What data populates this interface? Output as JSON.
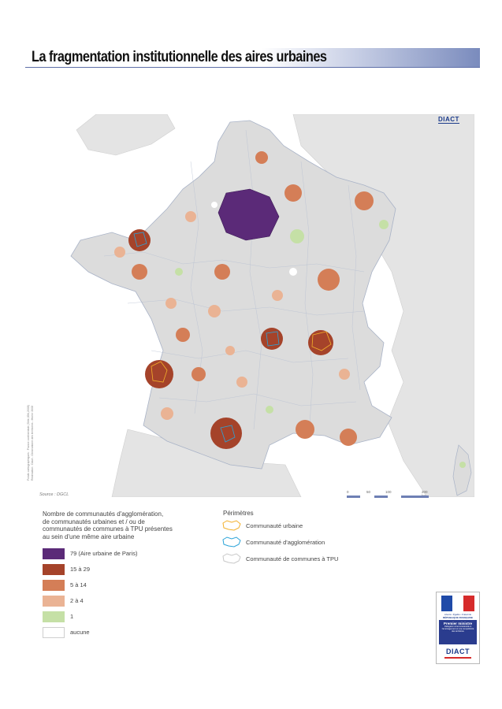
{
  "title": "La fragmentation institutionnelle des aires urbaines",
  "logo_top": "DIACT",
  "side_credit_line1": "Fonds cartographiques : France continentale (Sète,IGN,2008)",
  "side_credit_line2": "Réalisation : Diact - Observatoire des territoires - février 2008",
  "source": "Source : DGCL",
  "scale": {
    "labels": [
      "0",
      "50",
      "100",
      "200 km"
    ]
  },
  "legend": {
    "title_lines": [
      "Nombre de communautés d'agglomération,",
      "de communautés urbaines et / ou de",
      "communautés de communes à TPU présentes",
      "au sein d'une même aire urbaine"
    ],
    "items": [
      {
        "label": "79 (Aire urbaine de Paris)",
        "color": "#5b2a78"
      },
      {
        "label": "15 à 29",
        "color": "#a5432a"
      },
      {
        "label": "5 à 14",
        "color": "#d47e57"
      },
      {
        "label": "2 à 4",
        "color": "#eab394"
      },
      {
        "label": "1",
        "color": "#c5e0a6"
      },
      {
        "label": "aucune",
        "color": "#ffffff"
      }
    ]
  },
  "perimetres": {
    "title": "Périmètres",
    "items": [
      {
        "label": "Communauté urbaine",
        "color": "#f3b02a",
        "icon": "communaute-urbaine-outline-icon"
      },
      {
        "label": "Communauté d'agglomération",
        "color": "#2aa3d8",
        "icon": "communaute-agglomeration-outline-icon"
      },
      {
        "label": "Communauté de communes à TPU",
        "color": "#c8c8c8",
        "icon": "communaute-communes-outline-icon"
      }
    ]
  },
  "colors": {
    "land": "#dcdcdc",
    "neighbour_land": "#e4e4e4",
    "sea": "#ffffff",
    "border": "#a9b3c7"
  },
  "gov_logo": {
    "motto": "Liberté • Égalité • Fraternité",
    "republic": "RÉPUBLIQUE FRANÇAISE",
    "pm_title": "Premier ministre",
    "pm_sub": "Délégation interministérielle à l'aménagement et à la compétitivité des territoires",
    "diact": "DIACT"
  }
}
